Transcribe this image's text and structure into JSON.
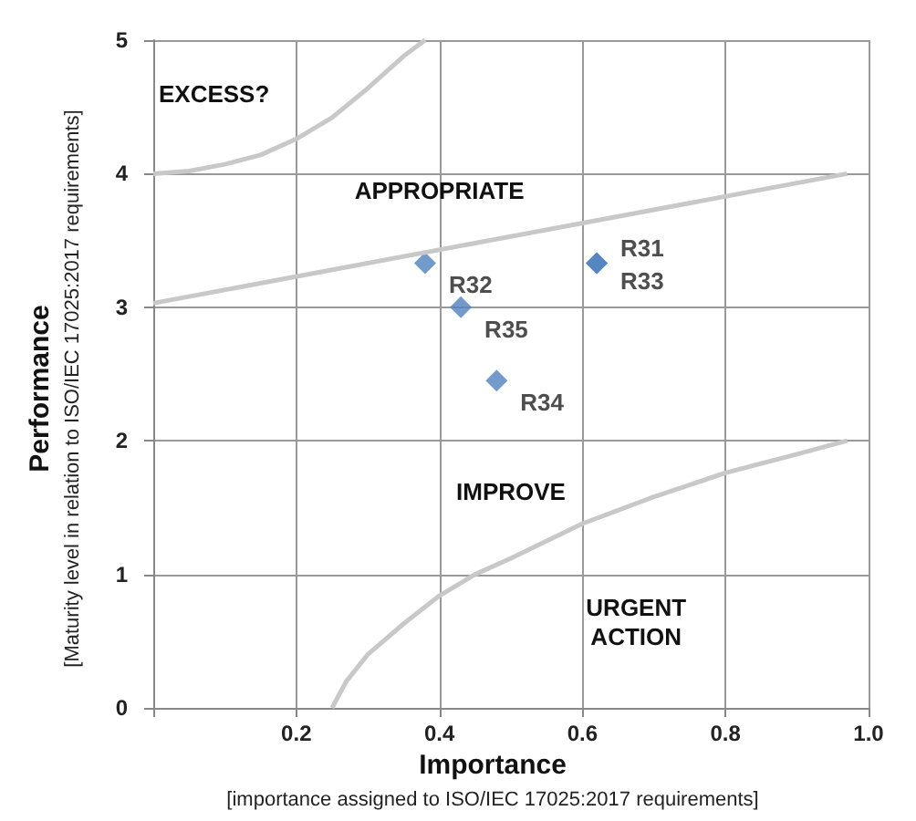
{
  "chart_data": {
    "type": "scatter",
    "xlabel": "Importance\n[importance assigned to ISO/IEC 17025:2017 requirements]",
    "ylabel": "Performance\n[Maturity level in relation to ISO/IEC 17025:2017 requirements]",
    "xlim": [
      0,
      1
    ],
    "xticks": [
      {
        "value": 0,
        "label": null
      },
      0.2,
      0.4,
      0.6,
      0.8,
      {
        "value": 1,
        "label": "1.0"
      }
    ],
    "ylim": [
      0,
      5
    ],
    "yticks": [
      0,
      1,
      2,
      3,
      4,
      5
    ],
    "grid": true,
    "marker": "diamond",
    "series": [
      {
        "color": "#4f81bd",
        "x": [
          0.62,
          0.38,
          0.62,
          0.48,
          0.43
        ],
        "values": [
          3.33,
          3.33,
          3.33,
          2.45,
          3.0
        ],
        "value_labels": [
          "R31",
          "R32",
          "R33",
          "R34",
          "R35"
        ]
      },
      {
        "type": "line",
        "color": "#c8c8c8",
        "marker": "none",
        "x": [
          0,
          0.05,
          0.1,
          0.15,
          0.2,
          0.25,
          0.3,
          0.35,
          0.38
        ],
        "values": [
          4.0,
          4.02,
          4.07,
          4.14,
          4.26,
          4.42,
          4.64,
          4.88,
          5.0
        ]
      },
      {
        "type": "line",
        "color": "#c8c8c8",
        "marker": "none",
        "x": [
          0,
          0.97
        ],
        "values": [
          3.03,
          4.0
        ]
      },
      {
        "type": "line",
        "color": "#c8c8c8",
        "marker": "none",
        "x": [
          0.25,
          0.27,
          0.3,
          0.35,
          0.4,
          0.45,
          0.5,
          0.6,
          0.7,
          0.8,
          0.9,
          0.97
        ],
        "values": [
          0,
          0.2,
          0.4,
          0.63,
          0.84,
          1.0,
          1.12,
          1.38,
          1.58,
          1.76,
          1.9,
          2.0
        ]
      }
    ],
    "annotations": [
      "EXCESS?",
      "APPROPRIATE",
      "IMPROVE",
      "URGENT\nACTION"
    ]
  }
}
